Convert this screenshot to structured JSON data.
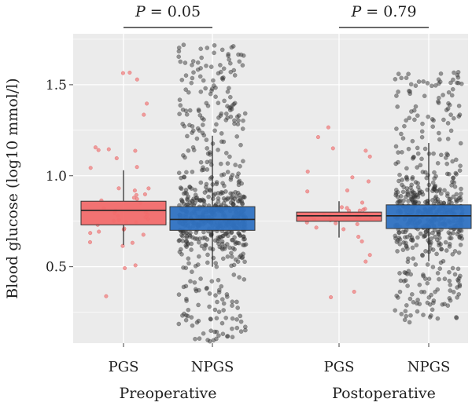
{
  "chart_data": {
    "type": "box",
    "ylabel": "Blood glucose (log10 mmol/l)",
    "ylim": [
      0.08,
      1.78
    ],
    "yticks": [
      "0.5",
      "1.0",
      "1.5"
    ],
    "ytick_values": [
      0.5,
      1.0,
      1.5
    ],
    "grid": true,
    "groups": [
      {
        "label": "Preoperative",
        "annotation": {
          "prefix": "P",
          "rest": " = 0.05"
        },
        "boxes": [
          {
            "category": "PGS",
            "color": "#f26b6b",
            "q1": 0.73,
            "median": 0.81,
            "q3": 0.86,
            "whisker_low": 0.62,
            "whisker_high": 1.03,
            "n_points": 45,
            "point_color": "#f08080"
          },
          {
            "category": "NPGS",
            "color": "#2f72c2",
            "q1": 0.7,
            "median": 0.76,
            "q3": 0.83,
            "whisker_low": 0.5,
            "whisker_high": 1.22,
            "n_points": 650,
            "point_color": "#3a3a3a"
          }
        ]
      },
      {
        "label": "Postoperative",
        "annotation": {
          "prefix": "P",
          "rest": " = 0.79"
        },
        "boxes": [
          {
            "category": "PGS",
            "color": "#f26b6b",
            "q1": 0.75,
            "median": 0.78,
            "q3": 0.8,
            "whisker_low": 0.66,
            "whisker_high": 0.86,
            "n_points": 40,
            "point_color": "#f08080"
          },
          {
            "category": "NPGS",
            "color": "#2f72c2",
            "q1": 0.71,
            "median": 0.78,
            "q3": 0.84,
            "whisker_low": 0.53,
            "whisker_high": 1.18,
            "n_points": 560,
            "point_color": "#3a3a3a"
          }
        ]
      }
    ],
    "point_ranges": {
      "PGS_pre": [
        0.22,
        1.57
      ],
      "NPGS_pre": [
        0.09,
        1.72
      ],
      "PGS_post": [
        0.27,
        1.27
      ],
      "NPGS_post": [
        0.18,
        1.57
      ]
    },
    "colors": {
      "panel_bg": "#ebebeb",
      "grid": "#ffffff"
    }
  }
}
